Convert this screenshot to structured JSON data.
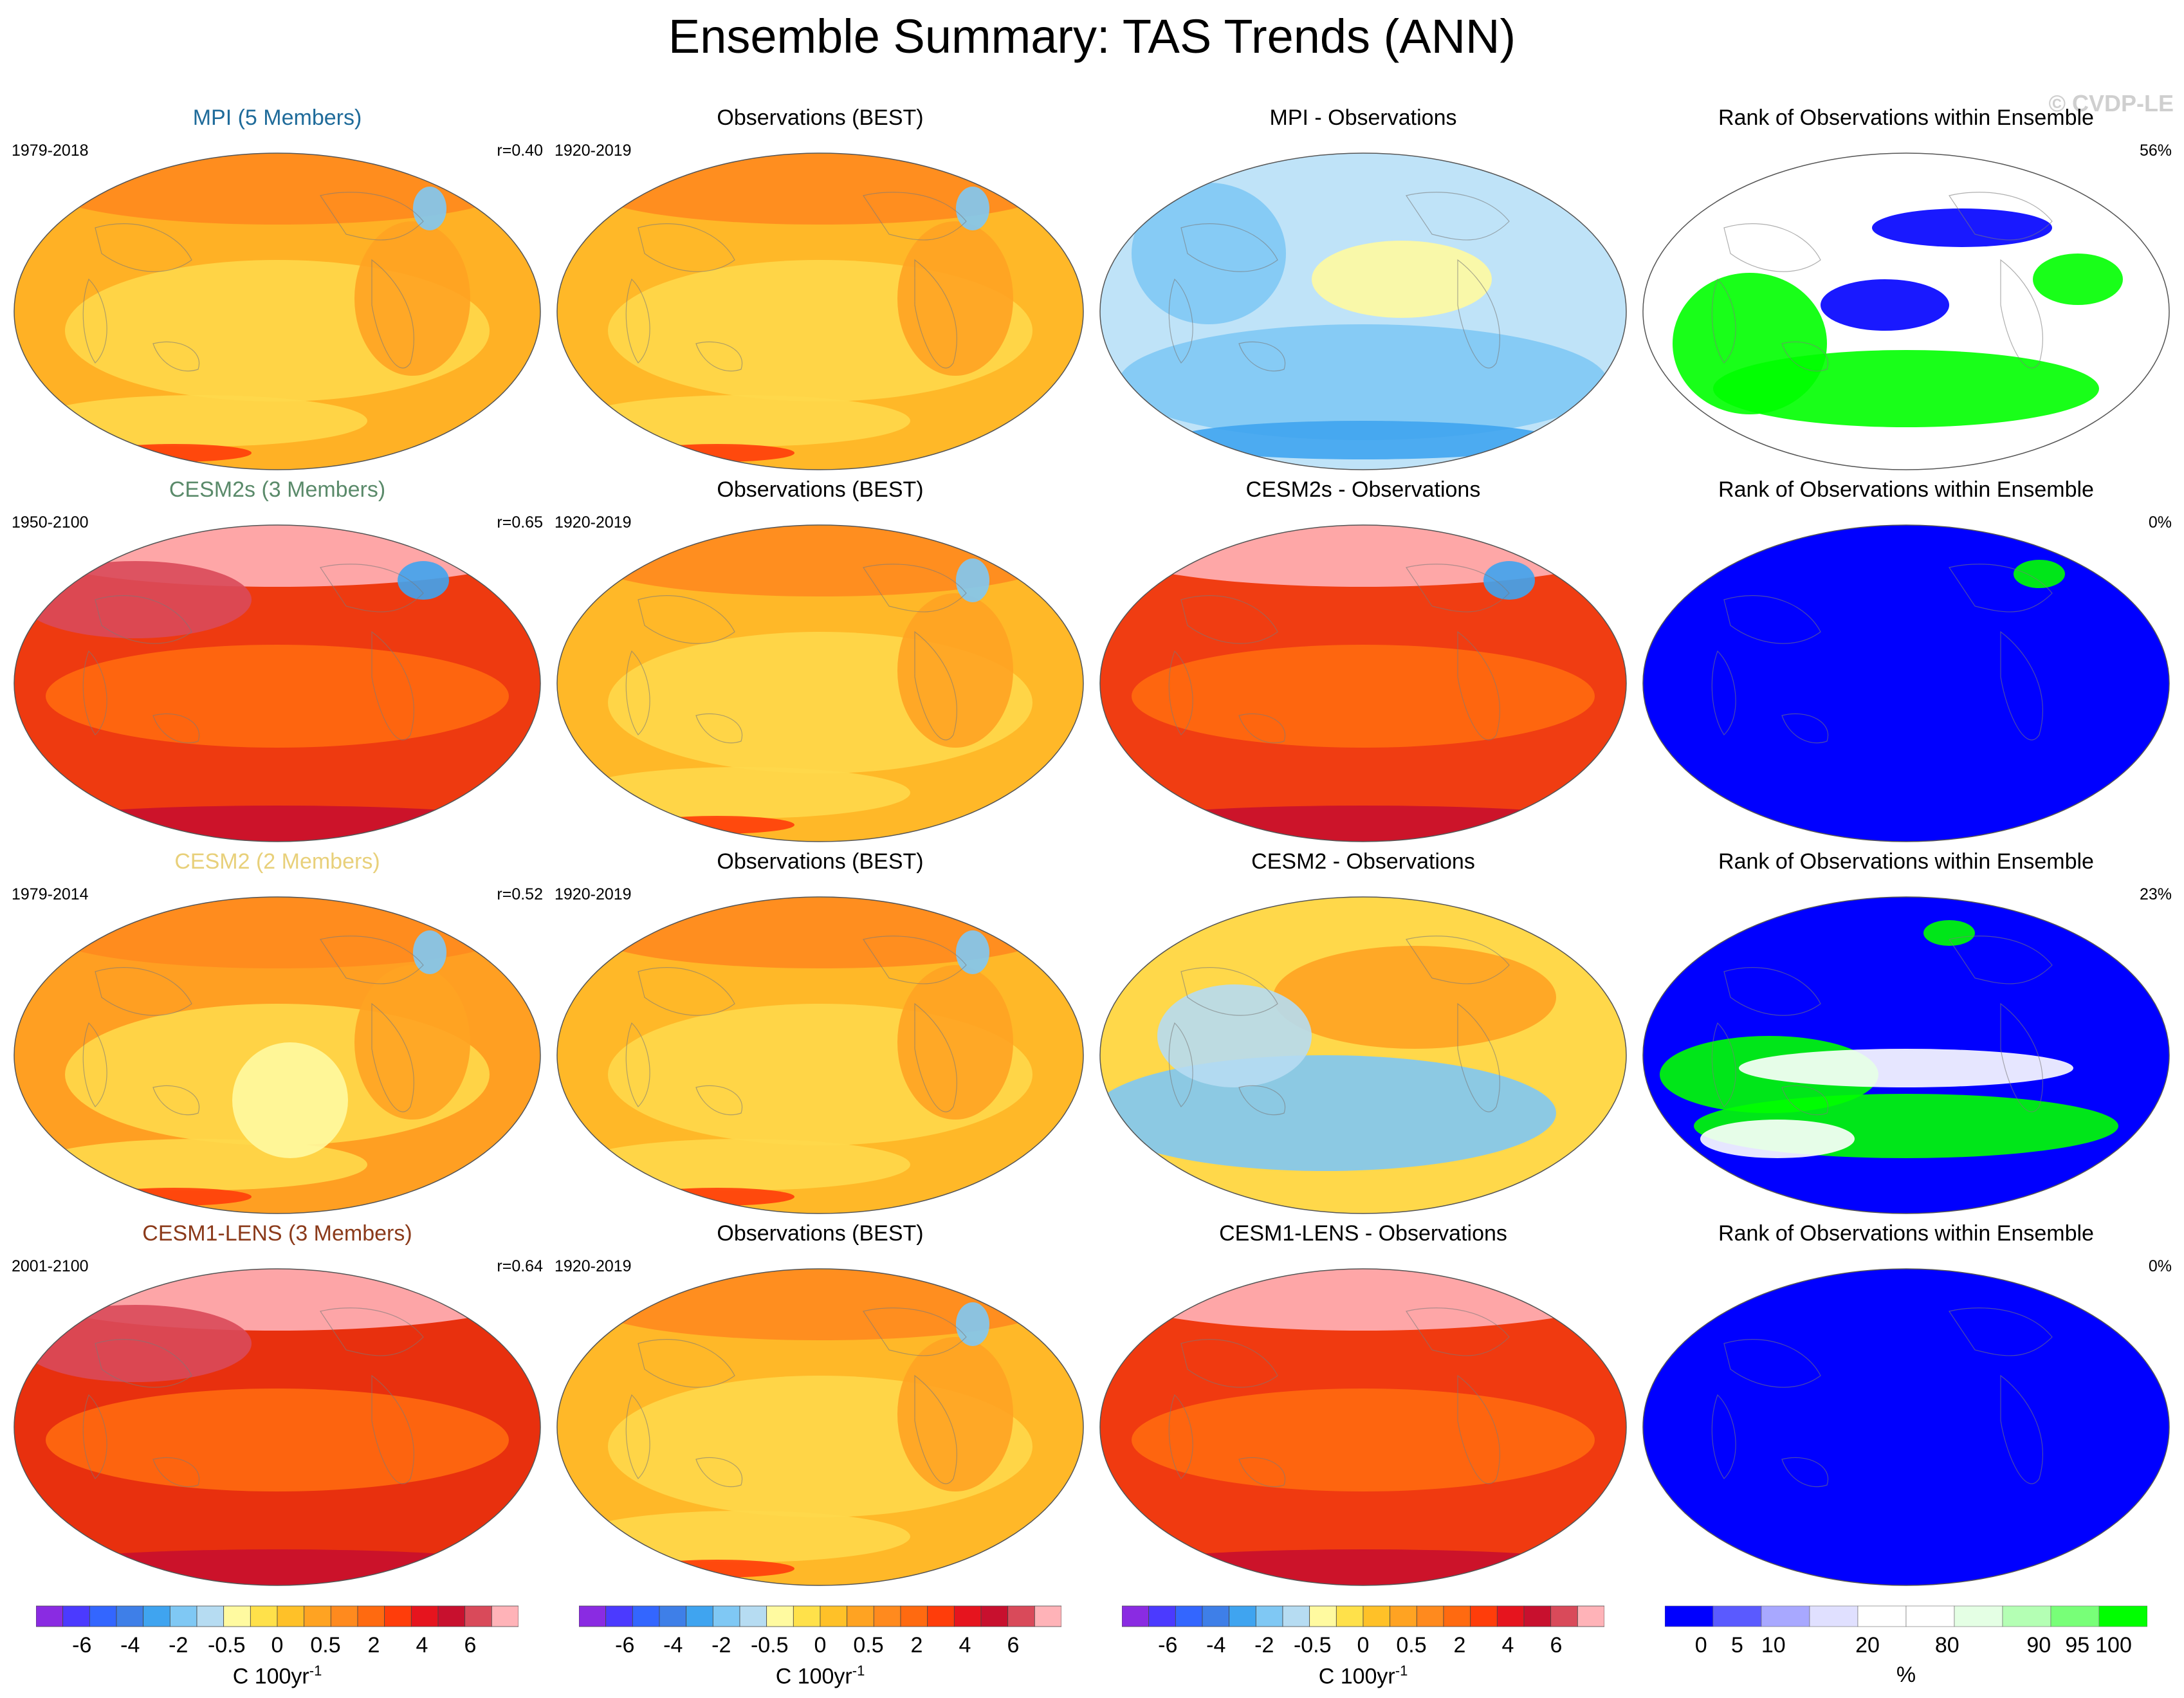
{
  "title": "Ensemble Summary: TAS Trends (ANN)",
  "watermark": "© CVDP-LE",
  "colors": {
    "trend_scale": [
      "#8a2be2",
      "#4b3aff",
      "#3366ff",
      "#3e7fe8",
      "#3fa4f0",
      "#7fc8f4",
      "#b6dcf2",
      "#fffaa0",
      "#ffe14a",
      "#ffc128",
      "#ffa322",
      "#ff8a1e",
      "#ff6a10",
      "#ff3d0a",
      "#e6141e",
      "#c8102e",
      "#d94a5a",
      "#ffb3b8"
    ],
    "rank_scale": [
      "#0000ff",
      "#5a5aff",
      "#a8a8ff",
      "#e0e0ff",
      "#ffffff",
      "#ffffff",
      "#e4ffe4",
      "#b4ffb4",
      "#78ff78",
      "#00ff00"
    ],
    "ocean_orange": "#ffa322",
    "ocean_red": "#ff3d0a",
    "blue": "#0000ff",
    "green": "#00ff00"
  },
  "rows": [
    {
      "model_title": "MPI (5 Members)",
      "model_title_color": "#1f6b9a",
      "model_period": "1979-2018",
      "model_r": "r=0.40",
      "model_fill": "#ffb125",
      "obs_title": "Observations (BEST)",
      "obs_period": "1920-2019",
      "diff_title": "MPI - Observations",
      "diff_fill": "#bfe3f8",
      "rank_title": "Rank of Observations within Ensemble",
      "rank_pct": "56%",
      "rank_fill": "#ffffff"
    },
    {
      "model_title": "CESM2s (3 Members)",
      "model_title_color": "#5a8a6a",
      "model_period": "1950-2100",
      "model_r": "r=0.65",
      "model_fill": "#ee3a10",
      "obs_title": "Observations (BEST)",
      "obs_period": "1920-2019",
      "diff_title": "CESM2s - Observations",
      "diff_fill": "#f03d12",
      "rank_title": "Rank of Observations within Ensemble",
      "rank_pct": "0%",
      "rank_fill": "#0000ff"
    },
    {
      "model_title": "CESM2 (2 Members)",
      "model_title_color": "#e8d07a",
      "model_period": "1979-2014",
      "model_r": "r=0.52",
      "model_fill": "#ff9f22",
      "obs_title": "Observations (BEST)",
      "obs_period": "1920-2019",
      "diff_title": "CESM2 - Observations",
      "diff_fill": "#ffd84a",
      "rank_title": "Rank of Observations within Ensemble",
      "rank_pct": "23%",
      "rank_fill": "#0000ff"
    },
    {
      "model_title": "CESM1-LENS (3 Members)",
      "model_title_color": "#8b3a1a",
      "model_period": "2001-2100",
      "model_r": "r=0.64",
      "model_fill": "#e8300e",
      "obs_title": "Observations (BEST)",
      "obs_period": "1920-2019",
      "diff_title": "CESM1-LENS - Observations",
      "diff_fill": "#f03a10",
      "rank_title": "Rank of Observations within Ensemble",
      "rank_pct": "0%",
      "rank_fill": "#0000ff"
    }
  ],
  "trend_colorbar": {
    "ticks": [
      "-6",
      "-4",
      "-2",
      "-0.5",
      "0",
      "0.5",
      "2",
      "4",
      "6"
    ],
    "units": "C 100yr",
    "units_sup": "-1"
  },
  "rank_colorbar": {
    "ticks": [
      "0",
      "5",
      "10",
      "20",
      "80",
      "90",
      "95",
      "100"
    ],
    "units": "%"
  }
}
